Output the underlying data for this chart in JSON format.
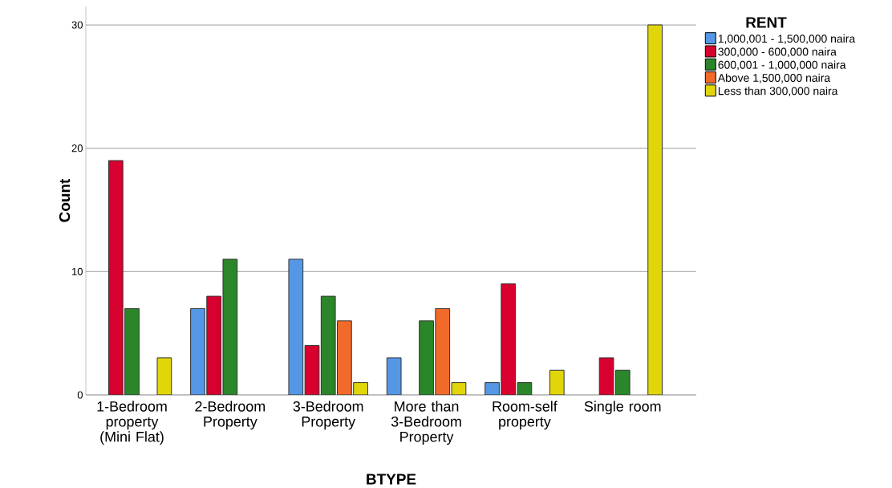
{
  "chart_data": {
    "type": "bar",
    "xlabel": "BTYPE",
    "ylabel": "Count",
    "legend_title": "RENT",
    "categories": [
      "1-Bedroom property (Mini Flat)",
      "2-Bedroom Property",
      "3-Bedroom Property",
      "More than 3-Bedroom Property",
      "Room-self property",
      "Single room"
    ],
    "series": [
      {
        "name": "1,000,001 - 1,500,000 naira",
        "color": "#5597e5",
        "values": [
          null,
          7,
          11,
          3,
          1,
          null
        ]
      },
      {
        "name": "300,000 - 600,000 naira",
        "color": "#d7002e",
        "values": [
          19,
          8,
          4,
          null,
          9,
          3
        ]
      },
      {
        "name": "600,001 - 1,000,000 naira",
        "color": "#2a8628",
        "values": [
          7,
          11,
          8,
          6,
          1,
          2
        ]
      },
      {
        "name": "Above 1,500,000 naira",
        "color": "#f26a2a",
        "values": [
          null,
          null,
          6,
          7,
          null,
          null
        ]
      },
      {
        "name": "Less than 300,000 naira",
        "color": "#e1d60a",
        "values": [
          3,
          null,
          1,
          1,
          2,
          30
        ]
      }
    ],
    "ylim": [
      0,
      31.5
    ],
    "yticks": [
      0,
      10,
      20,
      30
    ],
    "grid": "y",
    "legend": "top right"
  }
}
